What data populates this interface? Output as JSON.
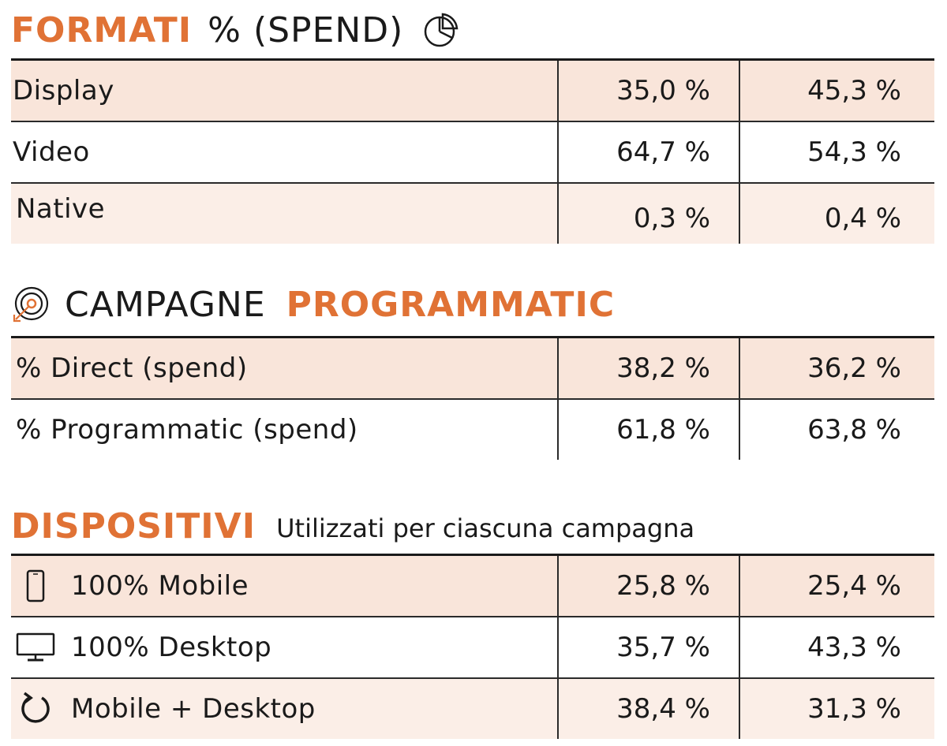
{
  "formati": {
    "title_strong": "FORMATI",
    "title_light": "% (SPEND)",
    "icon": "pie-chart-icon",
    "rows": [
      {
        "label": "Display",
        "a": "35,0  %",
        "b": "45,3 %"
      },
      {
        "label": "Video",
        "a": "64,7  %",
        "b": "54,3 %"
      },
      {
        "label": "Native",
        "a": "0,3  %",
        "b": "0,4 %"
      }
    ]
  },
  "campagne": {
    "icon": "target-arrow-icon",
    "title_light": "CAMPAGNE",
    "title_strong": "PROGRAMMATIC",
    "rows": [
      {
        "label": "% Direct (spend)",
        "a": "38,2  %",
        "b": "36,2 %"
      },
      {
        "label": "% Programmatic (spend)",
        "a": "61,8  %",
        "b": "63,8 %"
      }
    ]
  },
  "dispositivi": {
    "title_strong": "DISPOSITIVI",
    "subtitle": "Utilizzati per ciascuna campagna",
    "rows": [
      {
        "icon": "smartphone-icon",
        "label": "100% Mobile",
        "a": "25,8  %",
        "b": "25,4 %"
      },
      {
        "icon": "desktop-monitor-icon",
        "label": "100% Desktop",
        "a": "35,7  %",
        "b": "43,3 %"
      },
      {
        "icon": "refresh-icon",
        "label": "Mobile + Desktop",
        "a": "38,4  %",
        "b": "31,3 %"
      }
    ]
  },
  "colors": {
    "accent": "#e07235",
    "row_shade": "#f9e5da",
    "text": "#1a1a1a"
  }
}
